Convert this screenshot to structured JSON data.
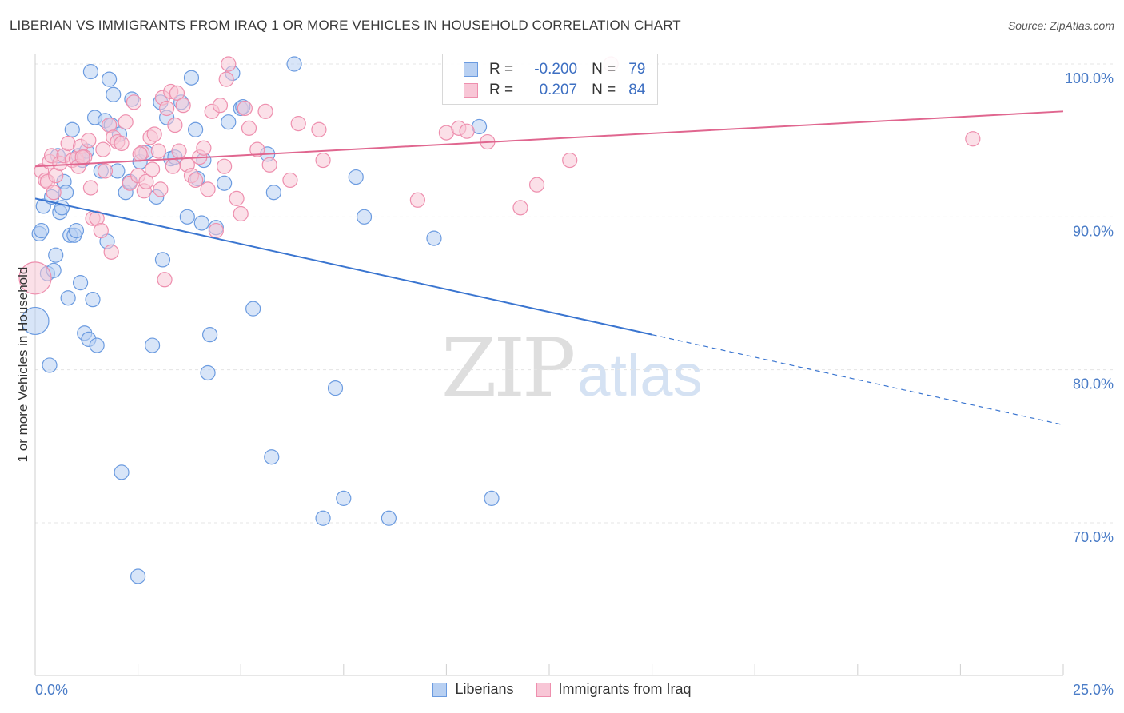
{
  "title": "LIBERIAN VS IMMIGRANTS FROM IRAQ 1 OR MORE VEHICLES IN HOUSEHOLD CORRELATION CHART",
  "source": "Source: ZipAtlas.com",
  "watermark": {
    "zip": "ZIP",
    "atlas": "atlas"
  },
  "legend": {
    "rows": [
      {
        "r_label": "R =",
        "r_value": "-0.200",
        "n_label": "N =",
        "n_value": "79"
      },
      {
        "r_label": "R =",
        "r_value": "0.207",
        "n_label": "N =",
        "n_value": "84"
      }
    ]
  },
  "bottom_legend": {
    "series1": "Liberians",
    "series2": "Immigrants from Iraq"
  },
  "colors": {
    "blue": "#6b9be0",
    "blue_fill": "#b8d0f2",
    "pink": "#ee8fae",
    "pink_fill": "#f8c6d6",
    "blue_line": "#3a75d0",
    "pink_line": "#e0668f"
  },
  "chart_data": {
    "type": "scatter",
    "title": "LIBERIAN VS IMMIGRANTS FROM IRAQ 1 OR MORE VEHICLES IN HOUSEHOLD CORRELATION CHART",
    "xlabel": "",
    "ylabel": "1 or more Vehicles in Household",
    "xlim": [
      0,
      25
    ],
    "ylim": [
      60,
      100
    ],
    "x_tick_labels": [
      "0.0%",
      "25.0%"
    ],
    "y_ticks": [
      70,
      80,
      90,
      100
    ],
    "y_tick_labels": [
      "70.0%",
      "80.0%",
      "90.0%",
      "100.0%"
    ],
    "grid": true,
    "series": [
      {
        "name": "Liberians",
        "color": "#6b9be0",
        "points": [
          [
            0.0,
            83.2
          ],
          [
            0.1,
            88.9
          ],
          [
            0.15,
            89.1
          ],
          [
            0.2,
            90.7
          ],
          [
            0.3,
            86.3
          ],
          [
            0.35,
            80.3
          ],
          [
            0.4,
            91.3
          ],
          [
            0.45,
            86.5
          ],
          [
            0.5,
            87.5
          ],
          [
            0.55,
            94.0
          ],
          [
            0.6,
            90.3
          ],
          [
            0.65,
            90.6
          ],
          [
            0.7,
            92.3
          ],
          [
            0.75,
            91.6
          ],
          [
            0.8,
            84.7
          ],
          [
            0.85,
            88.8
          ],
          [
            0.9,
            95.7
          ],
          [
            0.95,
            88.8
          ],
          [
            1.0,
            89.1
          ],
          [
            1.05,
            94.0
          ],
          [
            1.1,
            85.7
          ],
          [
            1.15,
            93.7
          ],
          [
            1.2,
            82.4
          ],
          [
            1.25,
            94.3
          ],
          [
            1.3,
            82.0
          ],
          [
            1.35,
            99.5
          ],
          [
            1.4,
            84.6
          ],
          [
            1.45,
            96.5
          ],
          [
            1.5,
            81.6
          ],
          [
            1.6,
            93.0
          ],
          [
            1.7,
            96.3
          ],
          [
            1.75,
            88.4
          ],
          [
            1.8,
            99.0
          ],
          [
            1.85,
            96.0
          ],
          [
            1.9,
            98.0
          ],
          [
            2.0,
            93.0
          ],
          [
            2.05,
            95.4
          ],
          [
            2.1,
            73.3
          ],
          [
            2.2,
            91.6
          ],
          [
            2.3,
            92.3
          ],
          [
            2.35,
            97.7
          ],
          [
            2.5,
            66.5
          ],
          [
            2.55,
            93.6
          ],
          [
            2.7,
            94.2
          ],
          [
            2.85,
            81.6
          ],
          [
            2.95,
            91.3
          ],
          [
            3.05,
            97.5
          ],
          [
            3.1,
            87.2
          ],
          [
            3.2,
            96.5
          ],
          [
            3.3,
            93.8
          ],
          [
            3.4,
            93.9
          ],
          [
            3.55,
            97.5
          ],
          [
            3.7,
            90.0
          ],
          [
            3.8,
            99.1
          ],
          [
            3.9,
            95.7
          ],
          [
            3.95,
            92.5
          ],
          [
            4.05,
            89.6
          ],
          [
            4.1,
            93.7
          ],
          [
            4.2,
            79.8
          ],
          [
            4.25,
            82.3
          ],
          [
            4.4,
            89.3
          ],
          [
            4.6,
            92.2
          ],
          [
            4.7,
            96.2
          ],
          [
            4.8,
            99.4
          ],
          [
            5.0,
            97.1
          ],
          [
            5.05,
            97.2
          ],
          [
            5.3,
            84.0
          ],
          [
            5.65,
            94.1
          ],
          [
            5.75,
            74.3
          ],
          [
            5.8,
            91.6
          ],
          [
            6.3,
            100.0
          ],
          [
            7.0,
            70.3
          ],
          [
            7.3,
            78.8
          ],
          [
            7.5,
            71.6
          ],
          [
            7.8,
            92.6
          ],
          [
            8.0,
            90.0
          ],
          [
            8.6,
            70.3
          ],
          [
            9.7,
            88.6
          ],
          [
            10.8,
            95.9
          ],
          [
            11.1,
            71.6
          ]
        ]
      },
      {
        "name": "Immigrants from Iraq",
        "color": "#ee8fae",
        "points": [
          [
            0.0,
            86.0
          ],
          [
            0.15,
            93.0
          ],
          [
            0.25,
            92.4
          ],
          [
            0.3,
            92.3
          ],
          [
            0.35,
            93.6
          ],
          [
            0.4,
            94.0
          ],
          [
            0.5,
            92.7
          ],
          [
            0.6,
            93.5
          ],
          [
            0.7,
            94.0
          ],
          [
            0.8,
            94.8
          ],
          [
            0.9,
            93.7
          ],
          [
            1.0,
            93.8
          ],
          [
            1.05,
            93.3
          ],
          [
            1.1,
            94.6
          ],
          [
            1.2,
            93.9
          ],
          [
            1.3,
            95.0
          ],
          [
            1.35,
            91.9
          ],
          [
            1.4,
            89.9
          ],
          [
            1.5,
            89.9
          ],
          [
            1.6,
            89.1
          ],
          [
            1.65,
            94.4
          ],
          [
            1.7,
            93.0
          ],
          [
            1.8,
            96.0
          ],
          [
            1.85,
            87.7
          ],
          [
            1.9,
            95.2
          ],
          [
            2.0,
            94.9
          ],
          [
            2.1,
            94.8
          ],
          [
            2.2,
            96.2
          ],
          [
            2.3,
            92.2
          ],
          [
            2.4,
            97.5
          ],
          [
            2.5,
            92.7
          ],
          [
            2.6,
            94.2
          ],
          [
            2.65,
            91.7
          ],
          [
            2.7,
            92.3
          ],
          [
            2.8,
            95.2
          ],
          [
            2.85,
            93.1
          ],
          [
            2.9,
            95.4
          ],
          [
            3.0,
            94.3
          ],
          [
            3.05,
            91.8
          ],
          [
            3.1,
            97.8
          ],
          [
            3.15,
            85.9
          ],
          [
            3.2,
            97.1
          ],
          [
            3.3,
            98.2
          ],
          [
            3.35,
            93.3
          ],
          [
            3.4,
            96.0
          ],
          [
            3.45,
            98.1
          ],
          [
            3.5,
            94.3
          ],
          [
            3.6,
            97.3
          ],
          [
            3.7,
            93.4
          ],
          [
            3.8,
            92.7
          ],
          [
            3.9,
            92.4
          ],
          [
            4.0,
            93.9
          ],
          [
            4.1,
            94.5
          ],
          [
            4.2,
            91.8
          ],
          [
            4.3,
            96.9
          ],
          [
            4.4,
            89.1
          ],
          [
            4.5,
            97.3
          ],
          [
            4.6,
            93.3
          ],
          [
            4.65,
            99.0
          ],
          [
            4.7,
            100.0
          ],
          [
            4.9,
            91.2
          ],
          [
            5.0,
            90.2
          ],
          [
            5.1,
            97.1
          ],
          [
            5.2,
            95.8
          ],
          [
            5.4,
            94.4
          ],
          [
            5.6,
            96.9
          ],
          [
            5.7,
            93.4
          ],
          [
            6.2,
            92.4
          ],
          [
            6.4,
            96.1
          ],
          [
            6.9,
            95.7
          ],
          [
            7.0,
            93.7
          ],
          [
            9.3,
            91.1
          ],
          [
            10.0,
            95.5
          ],
          [
            10.3,
            95.8
          ],
          [
            10.5,
            95.6
          ],
          [
            11.0,
            94.9
          ],
          [
            11.8,
            90.6
          ],
          [
            12.2,
            92.1
          ],
          [
            13.0,
            93.7
          ],
          [
            14.0,
            100.0
          ],
          [
            22.8,
            95.1
          ],
          [
            0.45,
            91.6
          ],
          [
            1.15,
            93.9
          ],
          [
            2.55,
            94.1
          ]
        ]
      }
    ],
    "trend_lines": [
      {
        "series": "Liberians",
        "x": [
          0,
          15
        ],
        "y": [
          91.2,
          82.3
        ],
        "dashed_extension_to": [
          25,
          76.4
        ]
      },
      {
        "series": "Immigrants from Iraq",
        "x": [
          0,
          25
        ],
        "y": [
          93.3,
          96.9
        ]
      }
    ]
  }
}
